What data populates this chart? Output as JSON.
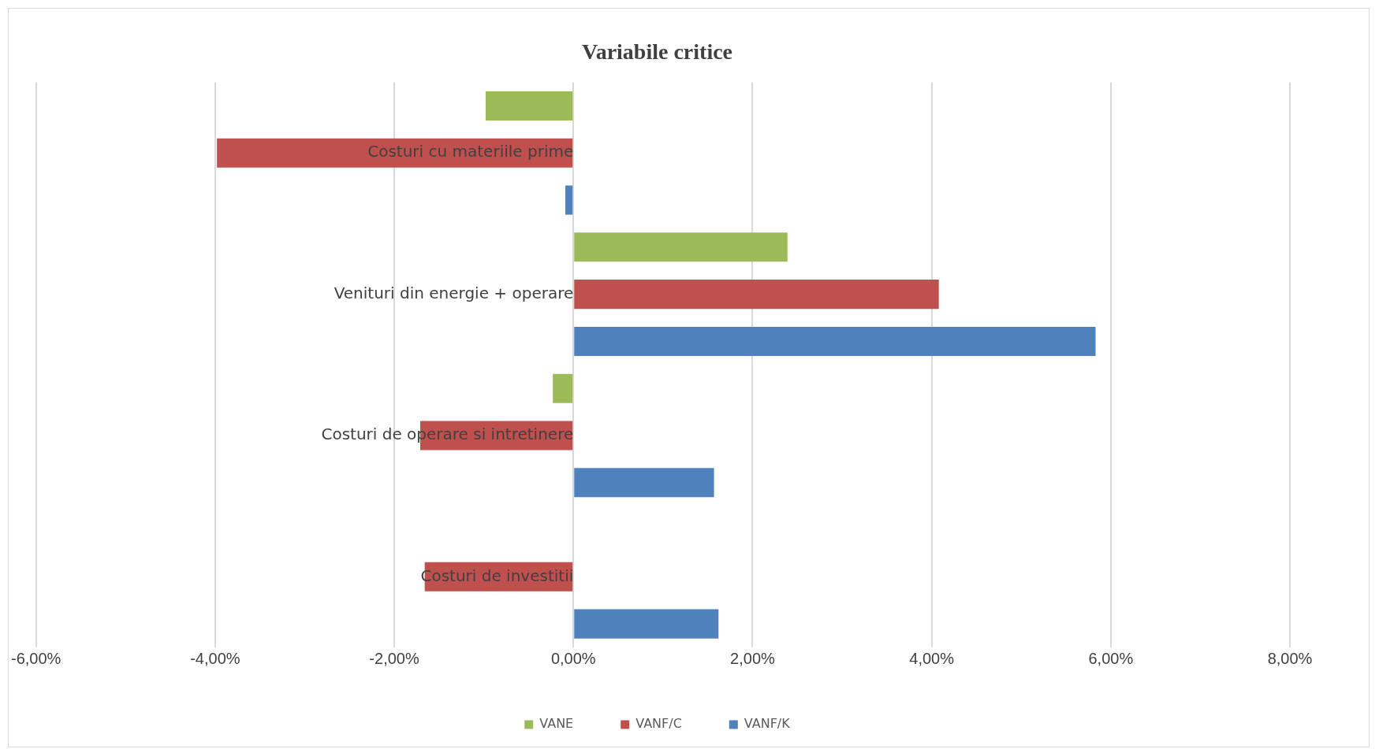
{
  "chart_data": {
    "type": "bar",
    "orientation": "horizontal",
    "title": "Variabile critice",
    "categories": [
      "Costuri cu materiile prime",
      "Venituri din energie + operare",
      "Costuri de operare si intretinere",
      "Costuri de investitii"
    ],
    "series": [
      {
        "name": "VANE",
        "color": "#9bbb59",
        "values": [
          -0.98,
          2.39,
          -0.23,
          null
        ]
      },
      {
        "name": "VANF/C",
        "color": "#c0504d",
        "values": [
          -3.98,
          4.08,
          -1.71,
          -1.66
        ]
      },
      {
        "name": "VANF/K",
        "color": "#4f81bd",
        "values": [
          -0.09,
          5.83,
          1.57,
          1.62
        ]
      }
    ],
    "xlim": [
      -6,
      8
    ],
    "xticks": [
      {
        "value": -6,
        "label": "-6,00%"
      },
      {
        "value": -4,
        "label": "-4,00%"
      },
      {
        "value": -2,
        "label": "-2,00%"
      },
      {
        "value": 0,
        "label": "0,00%"
      },
      {
        "value": 2,
        "label": "2,00%"
      },
      {
        "value": 4,
        "label": "4,00%"
      },
      {
        "value": 6,
        "label": "6,00%"
      },
      {
        "value": 8,
        "label": "8,00%"
      }
    ],
    "grid": "x",
    "legend": "bottom"
  }
}
